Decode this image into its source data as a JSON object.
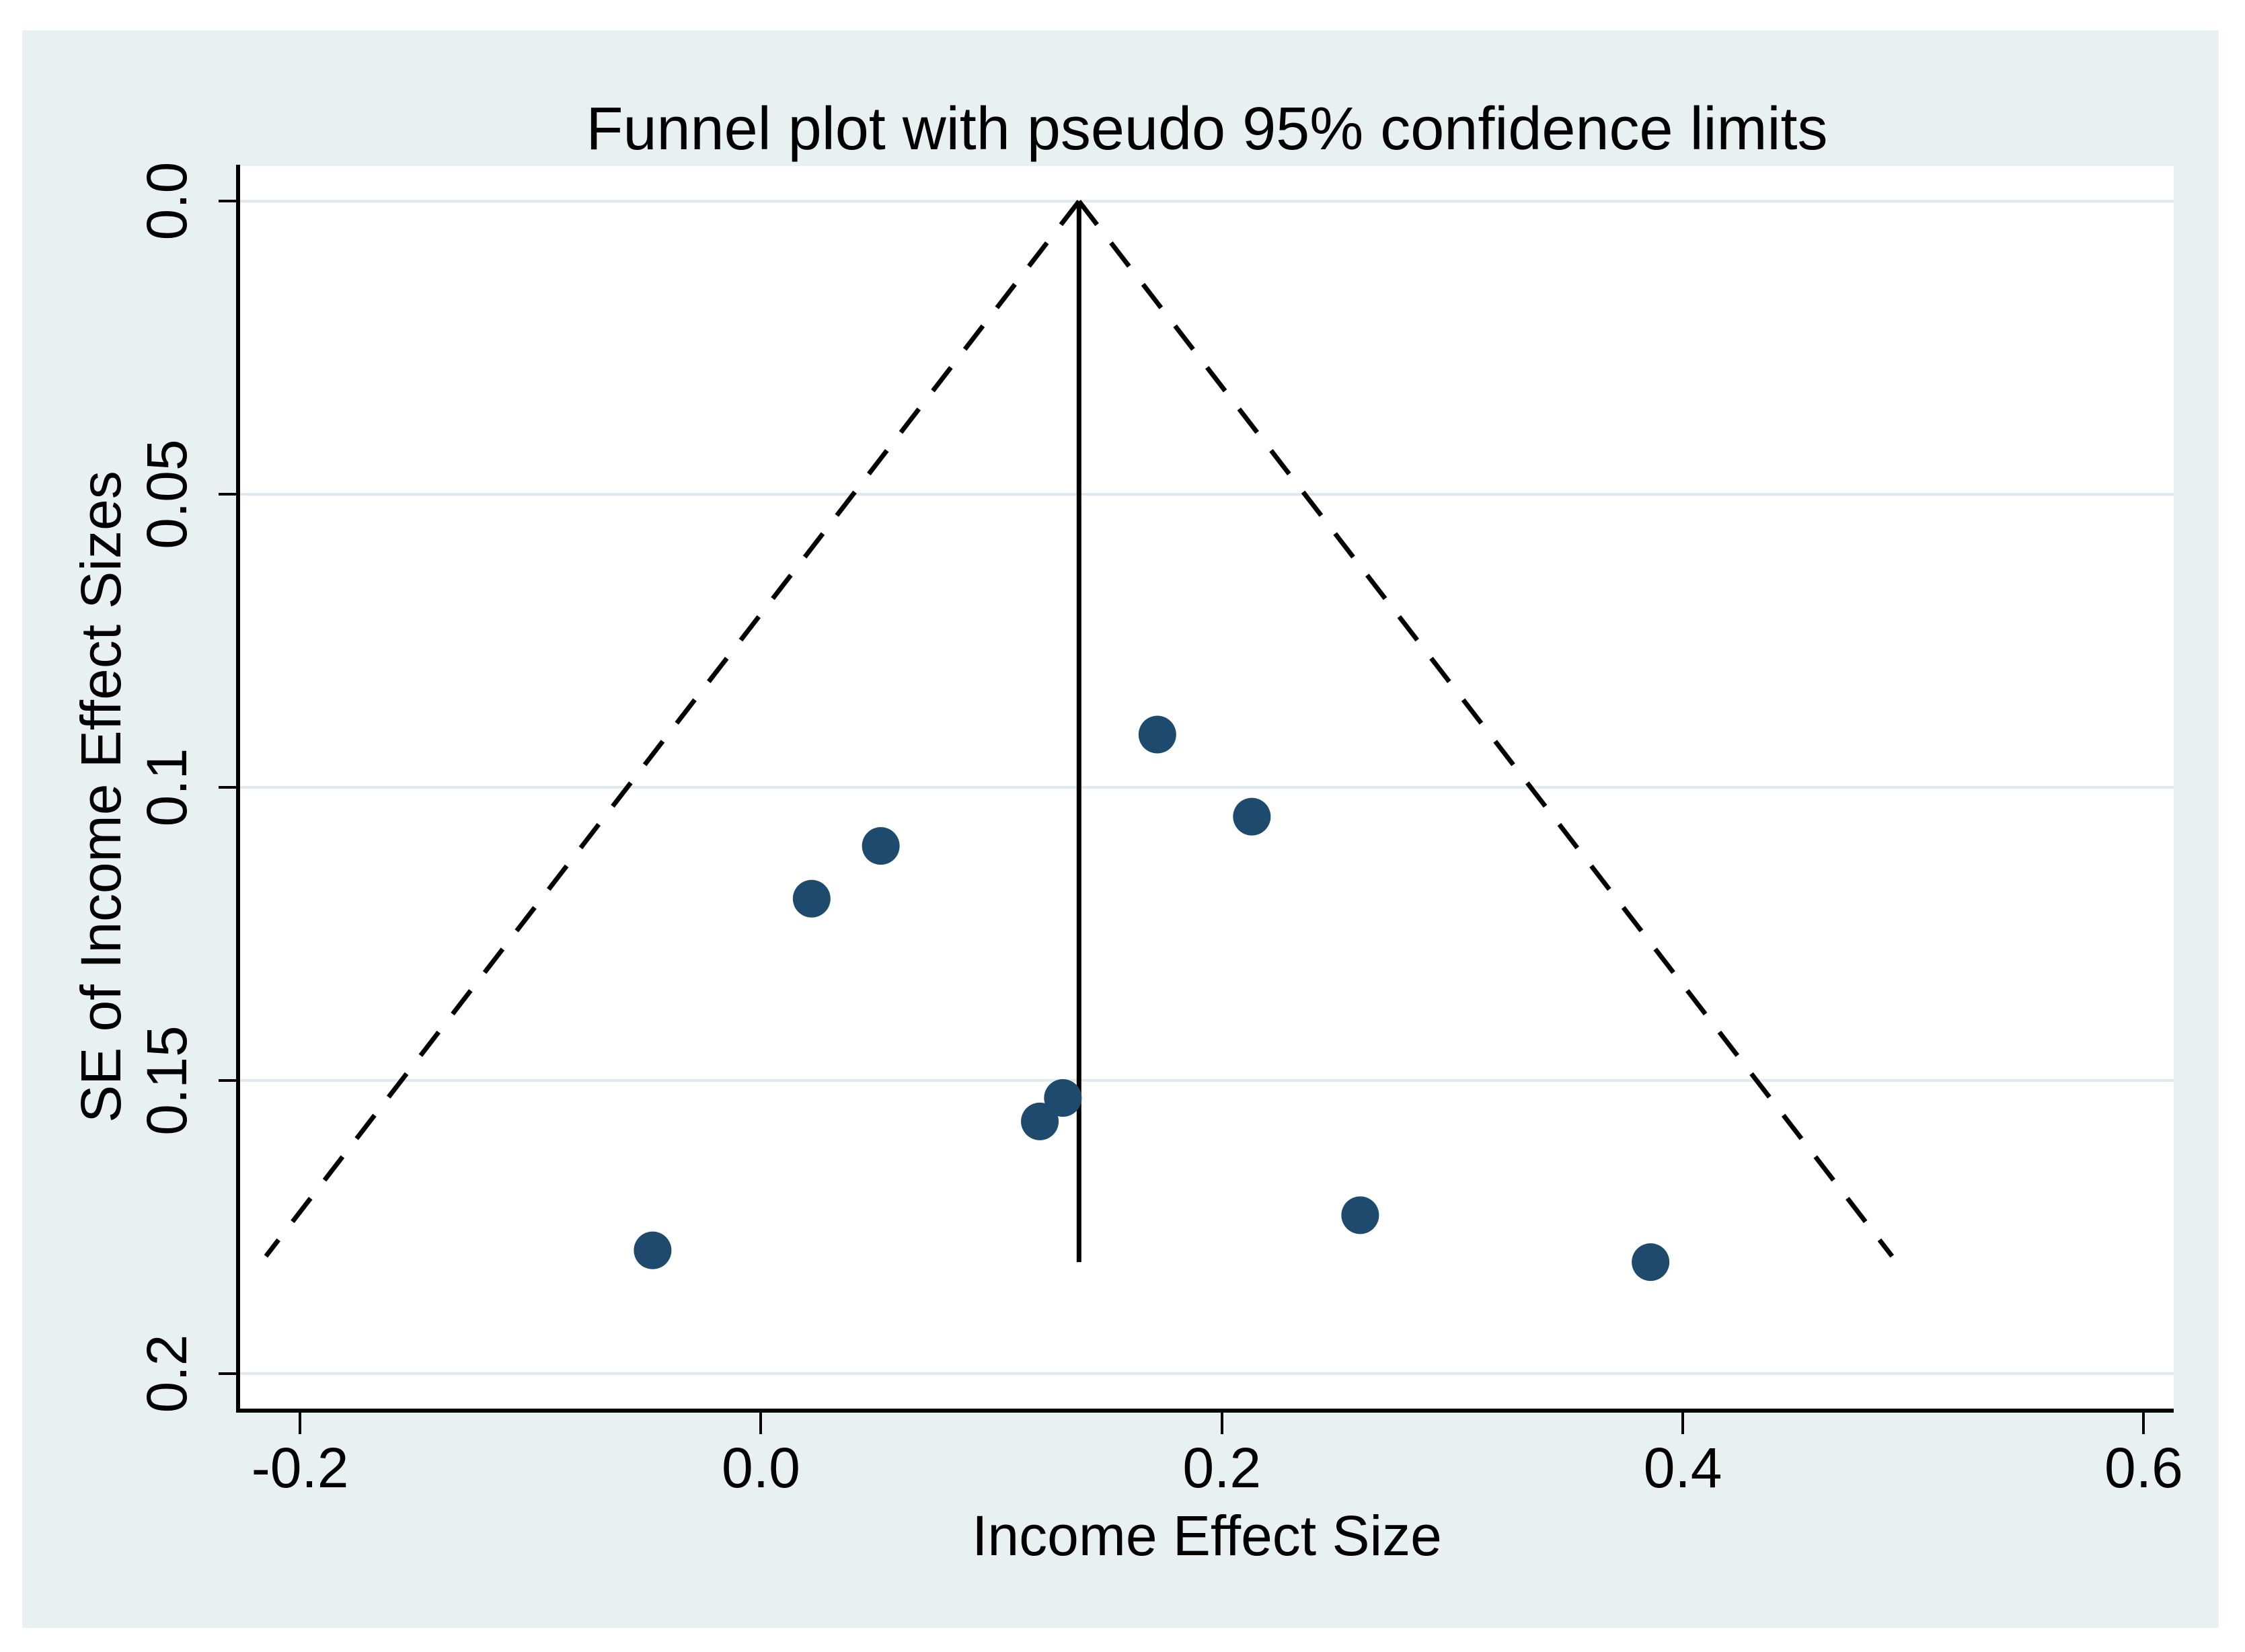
{
  "figure": {
    "title": "Funnel plot with pseudo 95% confidence limits",
    "x_axis": {
      "label": "Income Effect Size",
      "tick_values": [
        -0.2,
        0.0,
        0.2,
        0.4,
        0.6
      ],
      "tick_labels": [
        "-0.2",
        "0.0",
        "0.2",
        "0.4",
        "0.6"
      ]
    },
    "y_axis": {
      "label": "SE of Income Effect Sizes",
      "tick_values": [
        0.0,
        0.05,
        0.1,
        0.15,
        0.2
      ],
      "tick_labels": [
        "0.0",
        "0.05",
        "0.1",
        "0.15",
        "0.2"
      ]
    },
    "colors": {
      "outer_background": "#e9f0f2",
      "plot_background": "#ffffff",
      "gridline": "#dfeaee",
      "axis": "#000000",
      "marker": "#1d4a6d",
      "funnel_line": "#000000",
      "text": "#000000"
    }
  },
  "chart_data": {
    "type": "scatter",
    "title": "Funnel plot with pseudo 95% confidence limits",
    "xlabel": "Income Effect Size",
    "ylabel": "SE of Income Effect Sizes",
    "y_axis_reversed": true,
    "grid": true,
    "legend": false,
    "xlim": [
      -0.226,
      0.613
    ],
    "ylim": [
      -0.006,
      0.206
    ],
    "points": [
      {
        "x": 0.172,
        "se": 0.091
      },
      {
        "x": 0.213,
        "se": 0.105
      },
      {
        "x": 0.052,
        "se": 0.11
      },
      {
        "x": 0.022,
        "se": 0.119
      },
      {
        "x": 0.131,
        "se": 0.153
      },
      {
        "x": 0.121,
        "se": 0.157
      },
      {
        "x": 0.26,
        "se": 0.173
      },
      {
        "x": -0.047,
        "se": 0.179
      },
      {
        "x": 0.386,
        "se": 0.181
      }
    ],
    "mean_effect": 0.138,
    "pseudo_ci_z": 1.96,
    "funnel_bottom_se": 0.18,
    "vertical_line_bottom_se": 0.181,
    "funnel_limits_at_bottom": [
      -0.215,
      0.491
    ],
    "marker_radius_px": 28
  }
}
